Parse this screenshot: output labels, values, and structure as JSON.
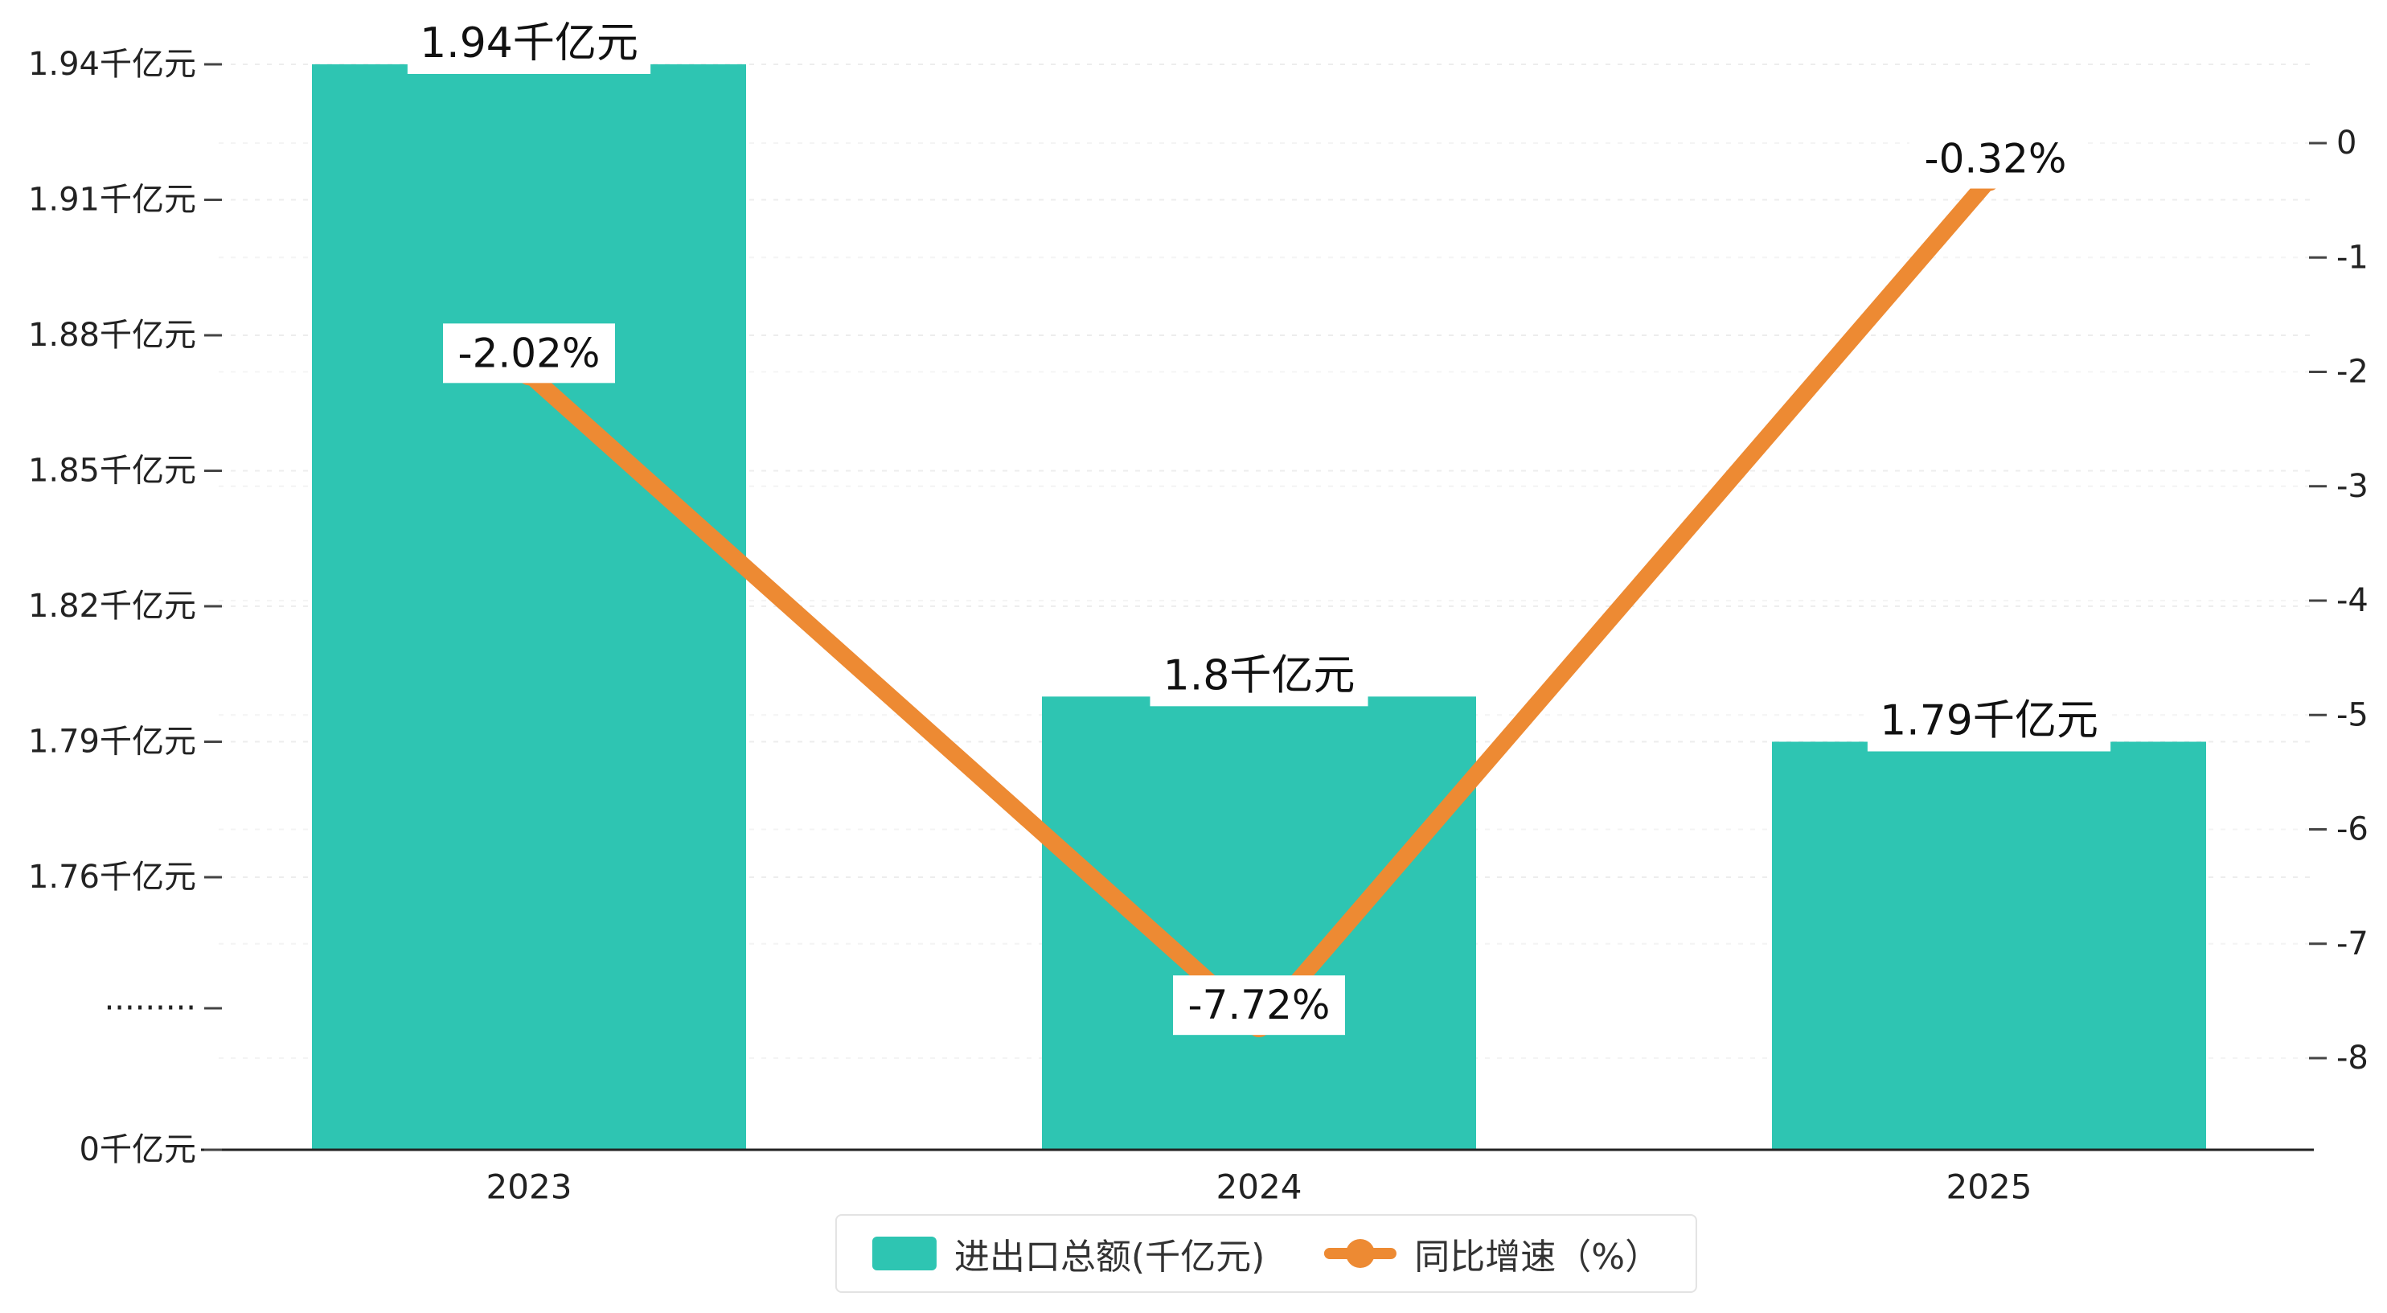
{
  "colors": {
    "bar": "#2ec5b2",
    "line": "#ed8a33",
    "axis_text": "#222222",
    "grid": "#ededed",
    "grid_secondary": "#f4f4f4",
    "label_text": "#111111",
    "axis_line": "#222222"
  },
  "chart_data": {
    "type": "bar",
    "subtype": "combo bar + line, dual y-axes, broken left axis",
    "categories": [
      "2023",
      "2024",
      "2025"
    ],
    "series": [
      {
        "name": "进出口总额(千亿元)",
        "type": "bar",
        "color": "#2ec5b2",
        "values": [
          1.94,
          1.8,
          1.79
        ],
        "value_labels": [
          "1.94千亿元",
          "1.8千亿元",
          "1.79千亿元"
        ],
        "axis": "left"
      },
      {
        "name": "同比增速（%）",
        "type": "line",
        "color": "#ed8a33",
        "values": [
          -2.02,
          -7.72,
          -0.32
        ],
        "value_labels": [
          "-2.02%",
          "-7.72%",
          "-0.32%"
        ],
        "axis": "right"
      }
    ],
    "left_axis": {
      "broken": true,
      "range_shown": [
        1.76,
        1.94
      ],
      "ticks": [
        {
          "label": "1.94千亿元",
          "value": 1.94
        },
        {
          "label": "1.91千亿元",
          "value": 1.91
        },
        {
          "label": "1.88千亿元",
          "value": 1.88
        },
        {
          "label": "1.85千亿元",
          "value": 1.85
        },
        {
          "label": "1.82千亿元",
          "value": 1.82
        },
        {
          "label": "1.79千亿元",
          "value": 1.79
        },
        {
          "label": "1.76千亿元",
          "value": 1.76
        },
        {
          "label": "·········",
          "value": null
        },
        {
          "label": "0千亿元",
          "value": 0
        }
      ]
    },
    "right_axis": {
      "range": [
        0,
        -8
      ],
      "labels": [
        "0",
        "-1",
        "-2",
        "-3",
        "-4",
        "-5",
        "-6",
        "-7",
        "-8"
      ],
      "values": [
        0,
        -1,
        -2,
        -3,
        -4,
        -5,
        -6,
        -7,
        -8
      ]
    },
    "grid": true,
    "legend": {
      "position": "bottom-center",
      "items": [
        {
          "label": "进出口总额(千亿元)",
          "marker": "bar-swatch"
        },
        {
          "label": "同比增速（%）",
          "marker": "line-dot"
        }
      ]
    }
  }
}
